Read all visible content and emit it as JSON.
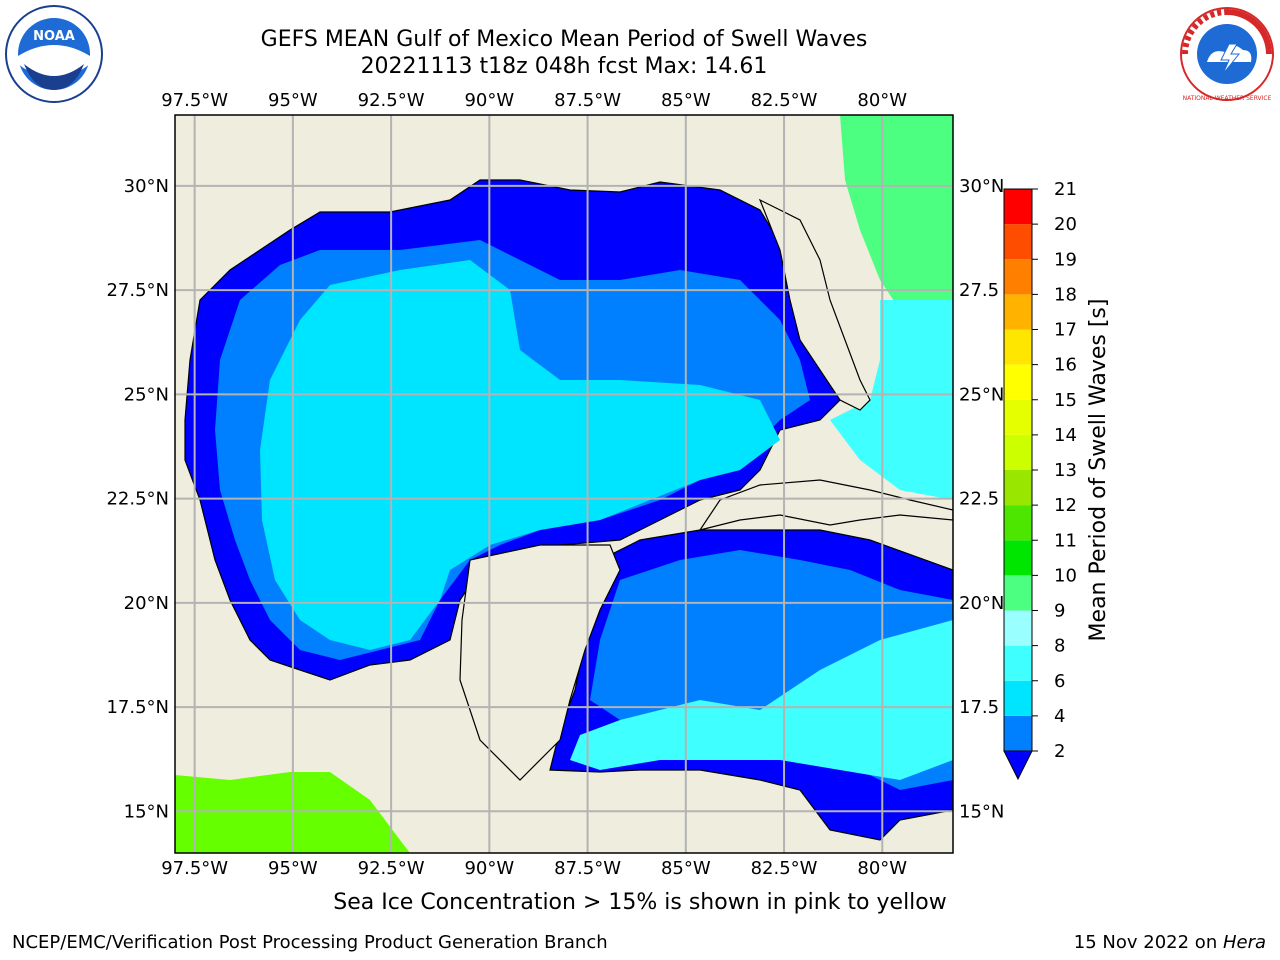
{
  "header": {
    "title_line1": "GEFS MEAN Gulf of Mexico Mean Period of Swell Waves",
    "title_line2": "20221113 t18z 048h fcst   Max: 14.61"
  },
  "logos": {
    "left": "noaa-logo",
    "right": "nws-logo",
    "left_text": "NOAA",
    "right_text": "NATIONAL WEATHER SERVICE"
  },
  "map": {
    "lon_labels": [
      "97.5°W",
      "95°W",
      "92.5°W",
      "90°W",
      "87.5°W",
      "85°W",
      "82.5°W",
      "80°W"
    ],
    "lat_labels_left": [
      "30°N",
      "27.5°N",
      "25°N",
      "22.5°N",
      "20°N",
      "17.5°N",
      "15°N"
    ],
    "lat_labels_right": [
      "30°N",
      "27.5",
      "25°N",
      "22.5",
      "20°N",
      "17.5",
      "15°N"
    ],
    "lon_extent": [
      -98.0,
      -78.2
    ],
    "lat_extent": [
      14.0,
      31.7
    ],
    "land_color": "#efedde",
    "grid_color": "#b3b3b3"
  },
  "colorbar": {
    "label": "Mean Period of Swell Waves [s]",
    "ticks": [
      "2",
      "4",
      "6",
      "8",
      "9",
      "10",
      "11",
      "12",
      "13",
      "14",
      "15",
      "16",
      "17",
      "18",
      "19",
      "20",
      "21"
    ],
    "tick_values": [
      2,
      4,
      6,
      8,
      9,
      10,
      11,
      12,
      13,
      14,
      15,
      16,
      17,
      18,
      19,
      20,
      21
    ],
    "colors": [
      "#0080ff",
      "#00e5ff",
      "#40ffff",
      "#99ffff",
      "#4dff80",
      "#00e600",
      "#4de600",
      "#99e600",
      "#ccff00",
      "#e6ff00",
      "#ffff00",
      "#ffe600",
      "#ffb300",
      "#ff8000",
      "#ff4d00",
      "#ff0000"
    ],
    "extend_color": "#0000ff"
  },
  "footer": {
    "note": "Sea Ice Concentration > 15% is shown in pink to yellow",
    "credit": "NCEP/EMC/Verification Post Processing Product Generation Branch",
    "date": "15 Nov 2022 on ",
    "machine": "Hera"
  }
}
